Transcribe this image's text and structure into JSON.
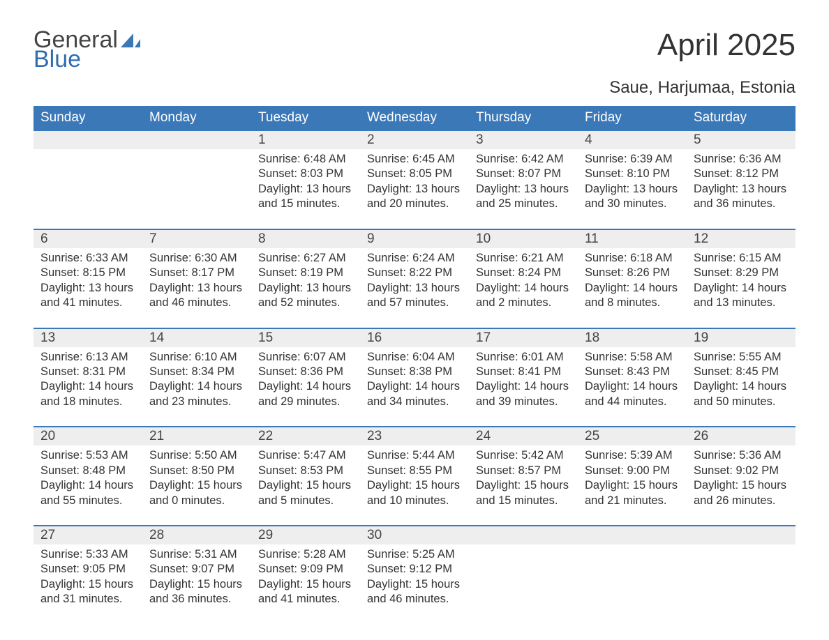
{
  "logo": {
    "word1": "General",
    "word2": "Blue",
    "sail_color": "#3b78b8"
  },
  "title": "April 2025",
  "location": "Saue, Harjumaa, Estonia",
  "colors": {
    "header_bg": "#3b78b8",
    "header_text": "#ffffff",
    "daynum_bg": "#eeeeee",
    "daynum_border": "#3b78b8",
    "body_text": "#333333",
    "page_bg": "#ffffff"
  },
  "day_labels": [
    "Sunday",
    "Monday",
    "Tuesday",
    "Wednesday",
    "Thursday",
    "Friday",
    "Saturday"
  ],
  "labels": {
    "sunrise": "Sunrise",
    "sunset": "Sunset",
    "daylight": "Daylight"
  },
  "weeks": [
    [
      null,
      null,
      {
        "d": "1",
        "sunrise": "6:48 AM",
        "sunset": "8:03 PM",
        "daylight": "13 hours and 15 minutes."
      },
      {
        "d": "2",
        "sunrise": "6:45 AM",
        "sunset": "8:05 PM",
        "daylight": "13 hours and 20 minutes."
      },
      {
        "d": "3",
        "sunrise": "6:42 AM",
        "sunset": "8:07 PM",
        "daylight": "13 hours and 25 minutes."
      },
      {
        "d": "4",
        "sunrise": "6:39 AM",
        "sunset": "8:10 PM",
        "daylight": "13 hours and 30 minutes."
      },
      {
        "d": "5",
        "sunrise": "6:36 AM",
        "sunset": "8:12 PM",
        "daylight": "13 hours and 36 minutes."
      }
    ],
    [
      {
        "d": "6",
        "sunrise": "6:33 AM",
        "sunset": "8:15 PM",
        "daylight": "13 hours and 41 minutes."
      },
      {
        "d": "7",
        "sunrise": "6:30 AM",
        "sunset": "8:17 PM",
        "daylight": "13 hours and 46 minutes."
      },
      {
        "d": "8",
        "sunrise": "6:27 AM",
        "sunset": "8:19 PM",
        "daylight": "13 hours and 52 minutes."
      },
      {
        "d": "9",
        "sunrise": "6:24 AM",
        "sunset": "8:22 PM",
        "daylight": "13 hours and 57 minutes."
      },
      {
        "d": "10",
        "sunrise": "6:21 AM",
        "sunset": "8:24 PM",
        "daylight": "14 hours and 2 minutes."
      },
      {
        "d": "11",
        "sunrise": "6:18 AM",
        "sunset": "8:26 PM",
        "daylight": "14 hours and 8 minutes."
      },
      {
        "d": "12",
        "sunrise": "6:15 AM",
        "sunset": "8:29 PM",
        "daylight": "14 hours and 13 minutes."
      }
    ],
    [
      {
        "d": "13",
        "sunrise": "6:13 AM",
        "sunset": "8:31 PM",
        "daylight": "14 hours and 18 minutes."
      },
      {
        "d": "14",
        "sunrise": "6:10 AM",
        "sunset": "8:34 PM",
        "daylight": "14 hours and 23 minutes."
      },
      {
        "d": "15",
        "sunrise": "6:07 AM",
        "sunset": "8:36 PM",
        "daylight": "14 hours and 29 minutes."
      },
      {
        "d": "16",
        "sunrise": "6:04 AM",
        "sunset": "8:38 PM",
        "daylight": "14 hours and 34 minutes."
      },
      {
        "d": "17",
        "sunrise": "6:01 AM",
        "sunset": "8:41 PM",
        "daylight": "14 hours and 39 minutes."
      },
      {
        "d": "18",
        "sunrise": "5:58 AM",
        "sunset": "8:43 PM",
        "daylight": "14 hours and 44 minutes."
      },
      {
        "d": "19",
        "sunrise": "5:55 AM",
        "sunset": "8:45 PM",
        "daylight": "14 hours and 50 minutes."
      }
    ],
    [
      {
        "d": "20",
        "sunrise": "5:53 AM",
        "sunset": "8:48 PM",
        "daylight": "14 hours and 55 minutes."
      },
      {
        "d": "21",
        "sunrise": "5:50 AM",
        "sunset": "8:50 PM",
        "daylight": "15 hours and 0 minutes."
      },
      {
        "d": "22",
        "sunrise": "5:47 AM",
        "sunset": "8:53 PM",
        "daylight": "15 hours and 5 minutes."
      },
      {
        "d": "23",
        "sunrise": "5:44 AM",
        "sunset": "8:55 PM",
        "daylight": "15 hours and 10 minutes."
      },
      {
        "d": "24",
        "sunrise": "5:42 AM",
        "sunset": "8:57 PM",
        "daylight": "15 hours and 15 minutes."
      },
      {
        "d": "25",
        "sunrise": "5:39 AM",
        "sunset": "9:00 PM",
        "daylight": "15 hours and 21 minutes."
      },
      {
        "d": "26",
        "sunrise": "5:36 AM",
        "sunset": "9:02 PM",
        "daylight": "15 hours and 26 minutes."
      }
    ],
    [
      {
        "d": "27",
        "sunrise": "5:33 AM",
        "sunset": "9:05 PM",
        "daylight": "15 hours and 31 minutes."
      },
      {
        "d": "28",
        "sunrise": "5:31 AM",
        "sunset": "9:07 PM",
        "daylight": "15 hours and 36 minutes."
      },
      {
        "d": "29",
        "sunrise": "5:28 AM",
        "sunset": "9:09 PM",
        "daylight": "15 hours and 41 minutes."
      },
      {
        "d": "30",
        "sunrise": "5:25 AM",
        "sunset": "9:12 PM",
        "daylight": "15 hours and 46 minutes."
      },
      null,
      null,
      null
    ]
  ]
}
